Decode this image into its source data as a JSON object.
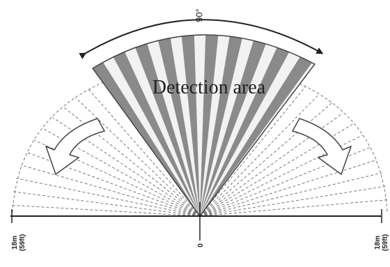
{
  "angle_label": "90°",
  "area_label": "Detection area",
  "scale": {
    "left": {
      "distance": "18m",
      "imperial": "(59ft)"
    },
    "center": "0",
    "right": {
      "distance": "18m",
      "imperial": "(59ft)"
    }
  }
}
